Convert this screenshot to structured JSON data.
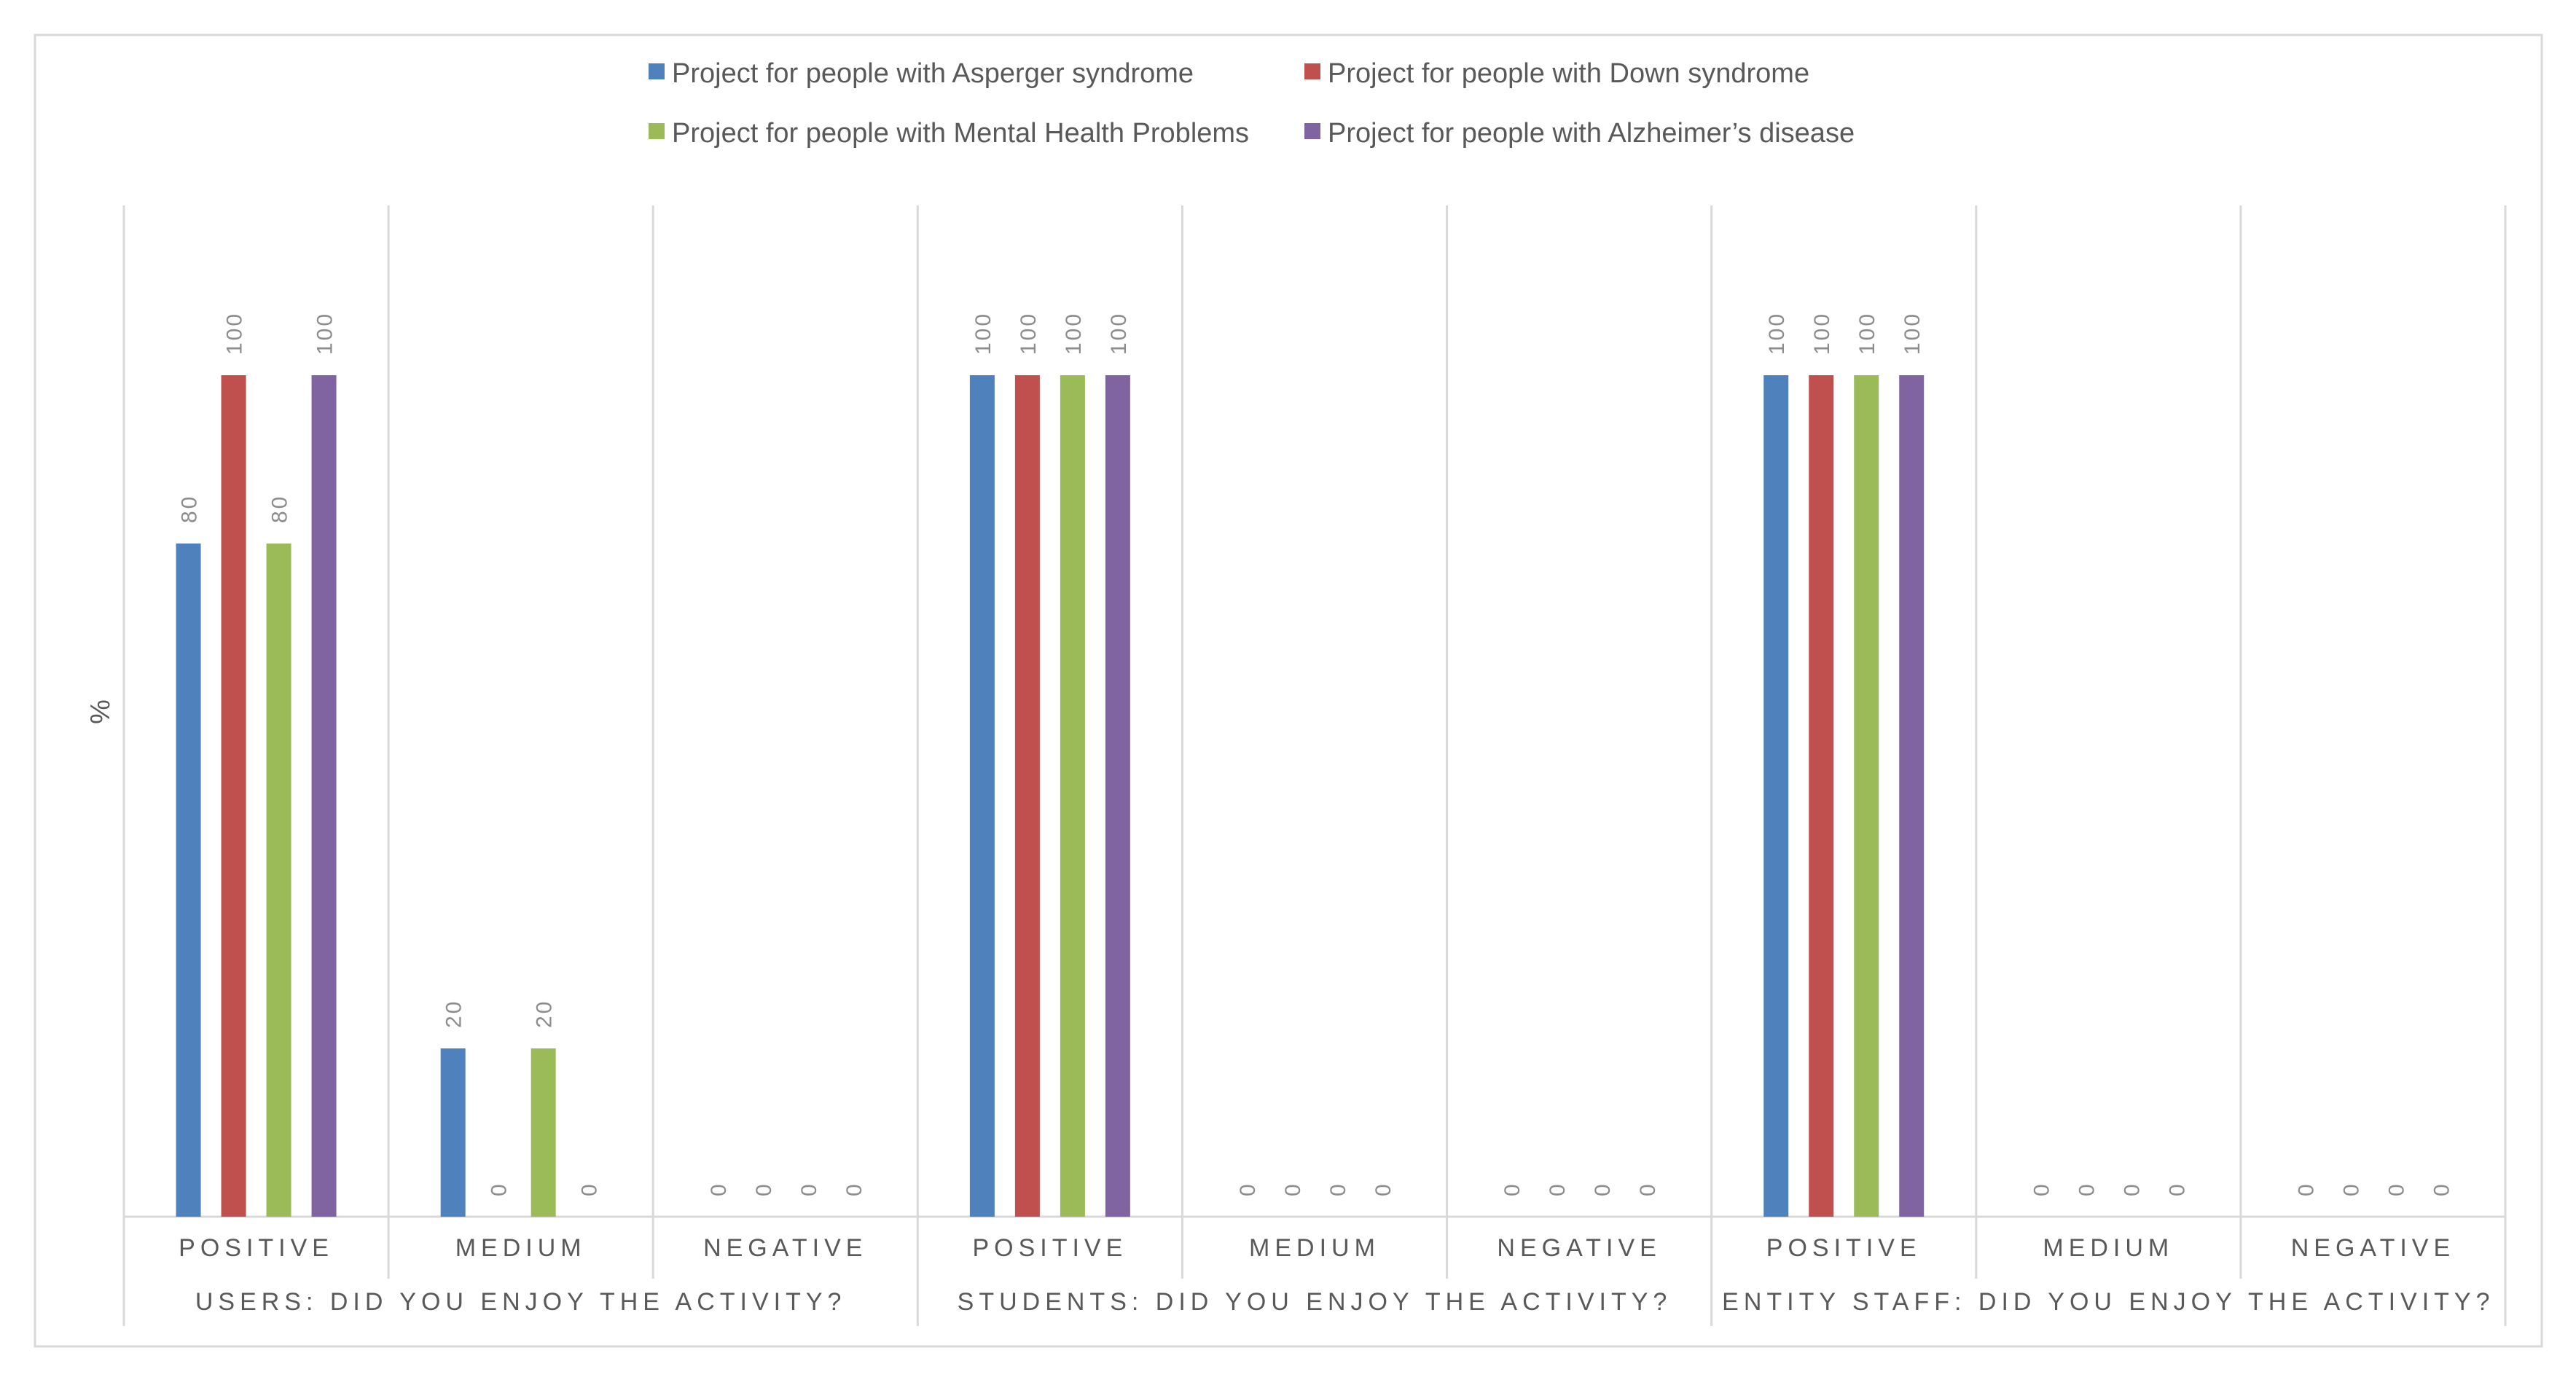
{
  "chart_data": {
    "type": "bar",
    "title": "",
    "ylabel": "%",
    "xlabel": "",
    "ylim": [
      0,
      100
    ],
    "grid": false,
    "legend": "top",
    "groups": [
      {
        "label": "USERS: DID YOU ENJOY THE ACTIVITY?",
        "categories": [
          "POSITIVE",
          "MEDIUM",
          "NEGATIVE"
        ],
        "series_values": [
          [
            80,
            100,
            80,
            100
          ],
          [
            20,
            0,
            20,
            0
          ],
          [
            0,
            0,
            0,
            0
          ]
        ]
      },
      {
        "label": "STUDENTS: DID YOU ENJOY THE ACTIVITY?",
        "categories": [
          "POSITIVE",
          "MEDIUM",
          "NEGATIVE"
        ],
        "series_values": [
          [
            100,
            100,
            100,
            100
          ],
          [
            0,
            0,
            0,
            0
          ],
          [
            0,
            0,
            0,
            0
          ]
        ]
      },
      {
        "label": "ENTITY STAFF: DID YOU ENJOY THE ACTIVITY?",
        "categories": [
          "POSITIVE",
          "MEDIUM",
          "NEGATIVE"
        ],
        "series_values": [
          [
            100,
            100,
            100,
            100
          ],
          [
            0,
            0,
            0,
            0
          ],
          [
            0,
            0,
            0,
            0
          ]
        ]
      }
    ],
    "series": [
      {
        "name": "Project for people with Asperger syndrome",
        "color": "#4f81bd"
      },
      {
        "name": "Project for people with Down syndrome",
        "color": "#c0504d"
      },
      {
        "name": "Project for people with Mental Health Problems",
        "color": "#9bbb59"
      },
      {
        "name": "Project for people with Alzheimer’s disease",
        "color": "#8064a2"
      }
    ],
    "colors": {
      "axis": "#d9d9d9",
      "frame": "#d9d9d9",
      "text": "#595959",
      "value_label": "#8c8c8c"
    }
  }
}
